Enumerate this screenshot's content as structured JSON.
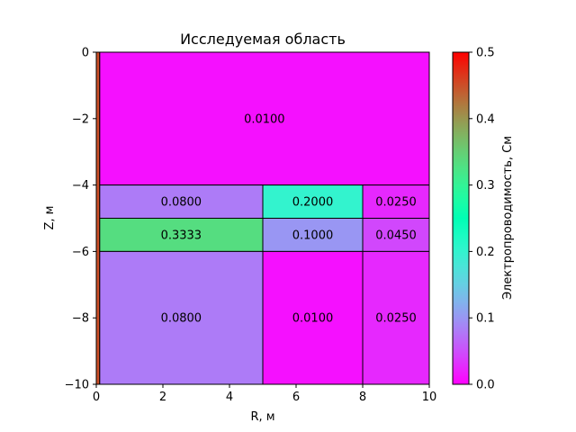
{
  "chart_data": {
    "type": "heatmap",
    "title": "Исследуемая область",
    "xlabel": "R, м",
    "ylabel": "Z, м",
    "xlim": [
      0,
      10
    ],
    "ylim": [
      -10,
      0
    ],
    "xticks": [
      "0",
      "2",
      "4",
      "6",
      "8",
      "10"
    ],
    "yticks": [
      "0",
      "−2",
      "−4",
      "−6",
      "−8",
      "−10"
    ],
    "colorbar": {
      "label": "Электропроводимость, См",
      "range": [
        0.0,
        0.5
      ],
      "ticks": [
        "0.0",
        "0.1",
        "0.2",
        "0.3",
        "0.4",
        "0.5"
      ],
      "colormap": "rainbow"
    },
    "regions": [
      {
        "r": [
          0.1,
          10
        ],
        "z": [
          -4,
          0
        ],
        "value": 0.01,
        "label": "0.0100"
      },
      {
        "r": [
          0.1,
          5
        ],
        "z": [
          -5,
          -4
        ],
        "value": 0.08,
        "label": "0.0800"
      },
      {
        "r": [
          5,
          8
        ],
        "z": [
          -5,
          -4
        ],
        "value": 0.2,
        "label": "0.2000"
      },
      {
        "r": [
          8,
          10
        ],
        "z": [
          -5,
          -4
        ],
        "value": 0.025,
        "label": "0.0250"
      },
      {
        "r": [
          0.1,
          5
        ],
        "z": [
          -6,
          -5
        ],
        "value": 0.3333,
        "label": "0.3333"
      },
      {
        "r": [
          5,
          8
        ],
        "z": [
          -6,
          -5
        ],
        "value": 0.1,
        "label": "0.1000"
      },
      {
        "r": [
          8,
          10
        ],
        "z": [
          -6,
          -5
        ],
        "value": 0.045,
        "label": "0.0450"
      },
      {
        "r": [
          0.1,
          5
        ],
        "z": [
          -10,
          -6
        ],
        "value": 0.08,
        "label": "0.0800"
      },
      {
        "r": [
          5,
          8
        ],
        "z": [
          -10,
          -6
        ],
        "value": 0.01,
        "label": "0.0100"
      },
      {
        "r": [
          8,
          10
        ],
        "z": [
          -10,
          -6
        ],
        "value": 0.025,
        "label": "0.0250"
      },
      {
        "r": [
          0,
          0.1
        ],
        "z": [
          -10,
          0
        ],
        "value": 0.45,
        "label": ""
      }
    ]
  }
}
